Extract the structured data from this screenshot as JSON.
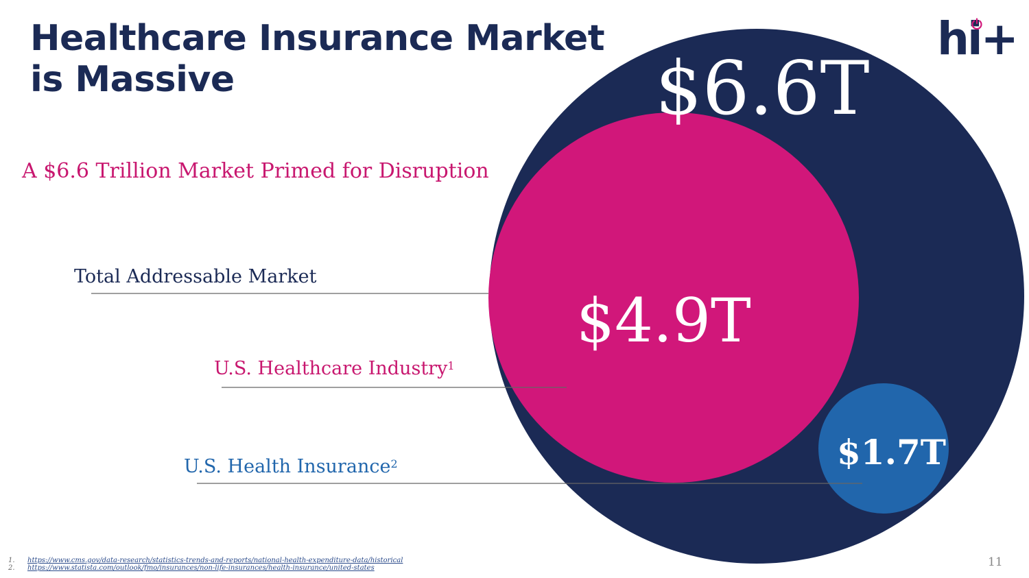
{
  "slide": {
    "title": "Healthcare Insurance Market is Massive",
    "subtitle": "A $6.6 Trillion Market Primed for Disruption",
    "page_number": "11"
  },
  "logo": {
    "text": "hi+",
    "icon": "power-icon"
  },
  "colors": {
    "navy": "#1b2a55",
    "magenta": "#d1177a",
    "blue": "#2166ac",
    "subtitle_magenta": "#c8176f"
  },
  "markets": [
    {
      "value": "$6.6T",
      "label": "Total Addressable Market",
      "superscript": "",
      "color": "#1b2a55"
    },
    {
      "value": "$4.9T",
      "label": "U.S. Healthcare Industry",
      "superscript": "1",
      "color": "#c8176f"
    },
    {
      "value": "$1.7T",
      "label": "U.S. Health Insurance",
      "superscript": "2",
      "color": "#2166ac"
    }
  ],
  "footnotes": [
    {
      "num": "1.",
      "text": "https://www.cms.gov/data-research/statistics-trends-and-reports/national-health-expenditure-data/historical"
    },
    {
      "num": "2.",
      "text": "https://www.statista.com/outlook/fmo/insurances/non-life-insurances/health-insurance/united-states"
    }
  ]
}
